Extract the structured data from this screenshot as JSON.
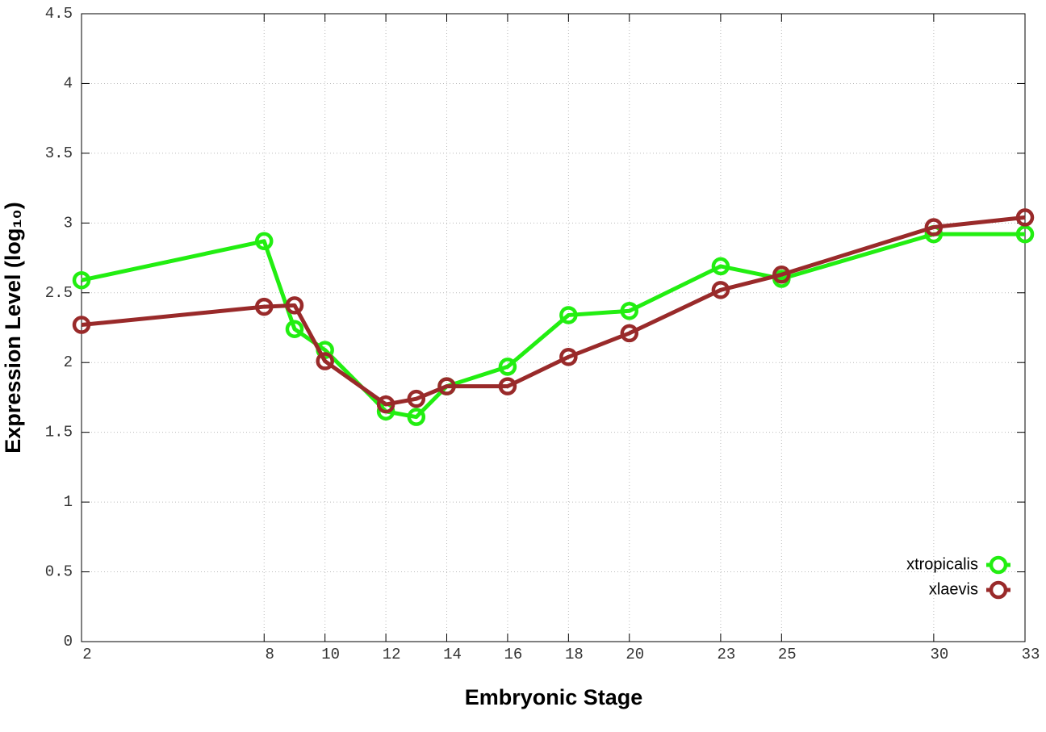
{
  "chart_data": {
    "type": "line",
    "xlabel": "Embryonic Stage",
    "ylabel": "Expression Level (log₁₀)",
    "x": [
      2,
      8,
      9,
      10,
      12,
      13,
      14,
      16,
      18,
      20,
      23,
      25,
      30,
      33
    ],
    "series": [
      {
        "name": "xtropicalis",
        "color": "#22ee11",
        "values": [
          2.59,
          2.87,
          2.24,
          2.09,
          1.65,
          1.61,
          1.83,
          1.97,
          2.34,
          2.37,
          2.69,
          2.6,
          2.92,
          2.92
        ]
      },
      {
        "name": "xlaevis",
        "color": "#992a2a",
        "values": [
          2.27,
          2.4,
          2.41,
          2.01,
          1.7,
          1.74,
          1.83,
          1.83,
          2.04,
          2.21,
          2.52,
          2.63,
          2.97,
          3.04
        ]
      }
    ],
    "xlim": [
      2,
      33
    ],
    "xticks": [
      2,
      8,
      10,
      12,
      14,
      16,
      18,
      20,
      23,
      25,
      30,
      33
    ],
    "ylim": [
      0,
      4.5
    ],
    "yticks": [
      0,
      0.5,
      1,
      1.5,
      2,
      2.5,
      3,
      3.5,
      4,
      4.5
    ],
    "grid": true,
    "legend": "lower right"
  }
}
